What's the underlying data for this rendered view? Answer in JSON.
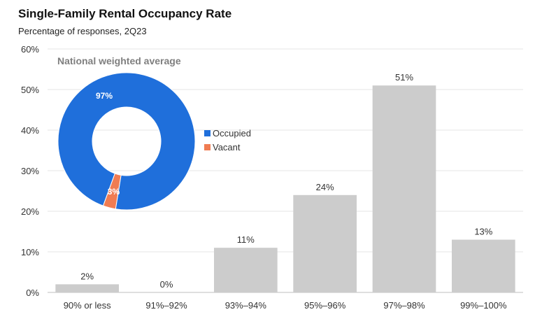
{
  "chart_data": [
    {
      "type": "bar",
      "title": "Single-Family Rental Occupancy Rate",
      "subtitle": "Percentage of responses, 2Q23",
      "categories": [
        "90% or less",
        "91%–92%",
        "93%–94%",
        "95%–96%",
        "97%–98%",
        "99%–100%"
      ],
      "values": [
        2,
        0,
        11,
        24,
        51,
        13
      ],
      "data_labels": [
        "2%",
        "0%",
        "11%",
        "24%",
        "51%",
        "13%"
      ],
      "ylim": [
        0,
        60
      ],
      "yticks": [
        0,
        10,
        20,
        30,
        40,
        50,
        60
      ],
      "ytick_labels": [
        "0%",
        "10%",
        "20%",
        "30%",
        "40%",
        "50%",
        "60%"
      ],
      "grid": true,
      "bar_color": "#cccccc"
    },
    {
      "type": "pie",
      "title": "National weighted average",
      "labels": [
        "Occupied",
        "Vacant"
      ],
      "values": [
        97,
        3
      ],
      "data_labels": [
        "97%",
        "3%"
      ],
      "colors": [
        "#1f6fdb",
        "#f07c52"
      ],
      "legend_position": "right"
    }
  ]
}
